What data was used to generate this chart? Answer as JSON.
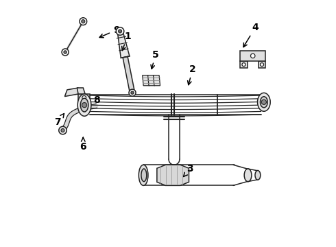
{
  "bg_color": "#ffffff",
  "line_color": "#222222",
  "label_color": "#000000",
  "figsize": [
    4.9,
    3.6
  ],
  "dpi": 100,
  "labels": {
    "1": {
      "text": [
        3.35,
        8.55
      ],
      "arrow": [
        3.1,
        7.85
      ]
    },
    "2": {
      "text": [
        6.0,
        7.2
      ],
      "arrow": [
        5.8,
        6.45
      ]
    },
    "3": {
      "text": [
        5.9,
        3.15
      ],
      "arrow": [
        5.55,
        2.75
      ]
    },
    "4": {
      "text": [
        8.55,
        8.9
      ],
      "arrow": [
        8.0,
        8.0
      ]
    },
    "5": {
      "text": [
        4.5,
        7.8
      ],
      "arrow": [
        4.3,
        7.1
      ]
    },
    "6": {
      "text": [
        1.55,
        4.05
      ],
      "arrow": [
        1.55,
        4.55
      ]
    },
    "7": {
      "text": [
        0.5,
        5.05
      ],
      "arrow": [
        0.85,
        5.5
      ]
    },
    "8": {
      "text": [
        2.1,
        5.95
      ],
      "arrow": [
        1.55,
        5.7
      ]
    },
    "9": {
      "text": [
        2.9,
        8.8
      ],
      "arrow": [
        2.1,
        8.45
      ]
    }
  }
}
